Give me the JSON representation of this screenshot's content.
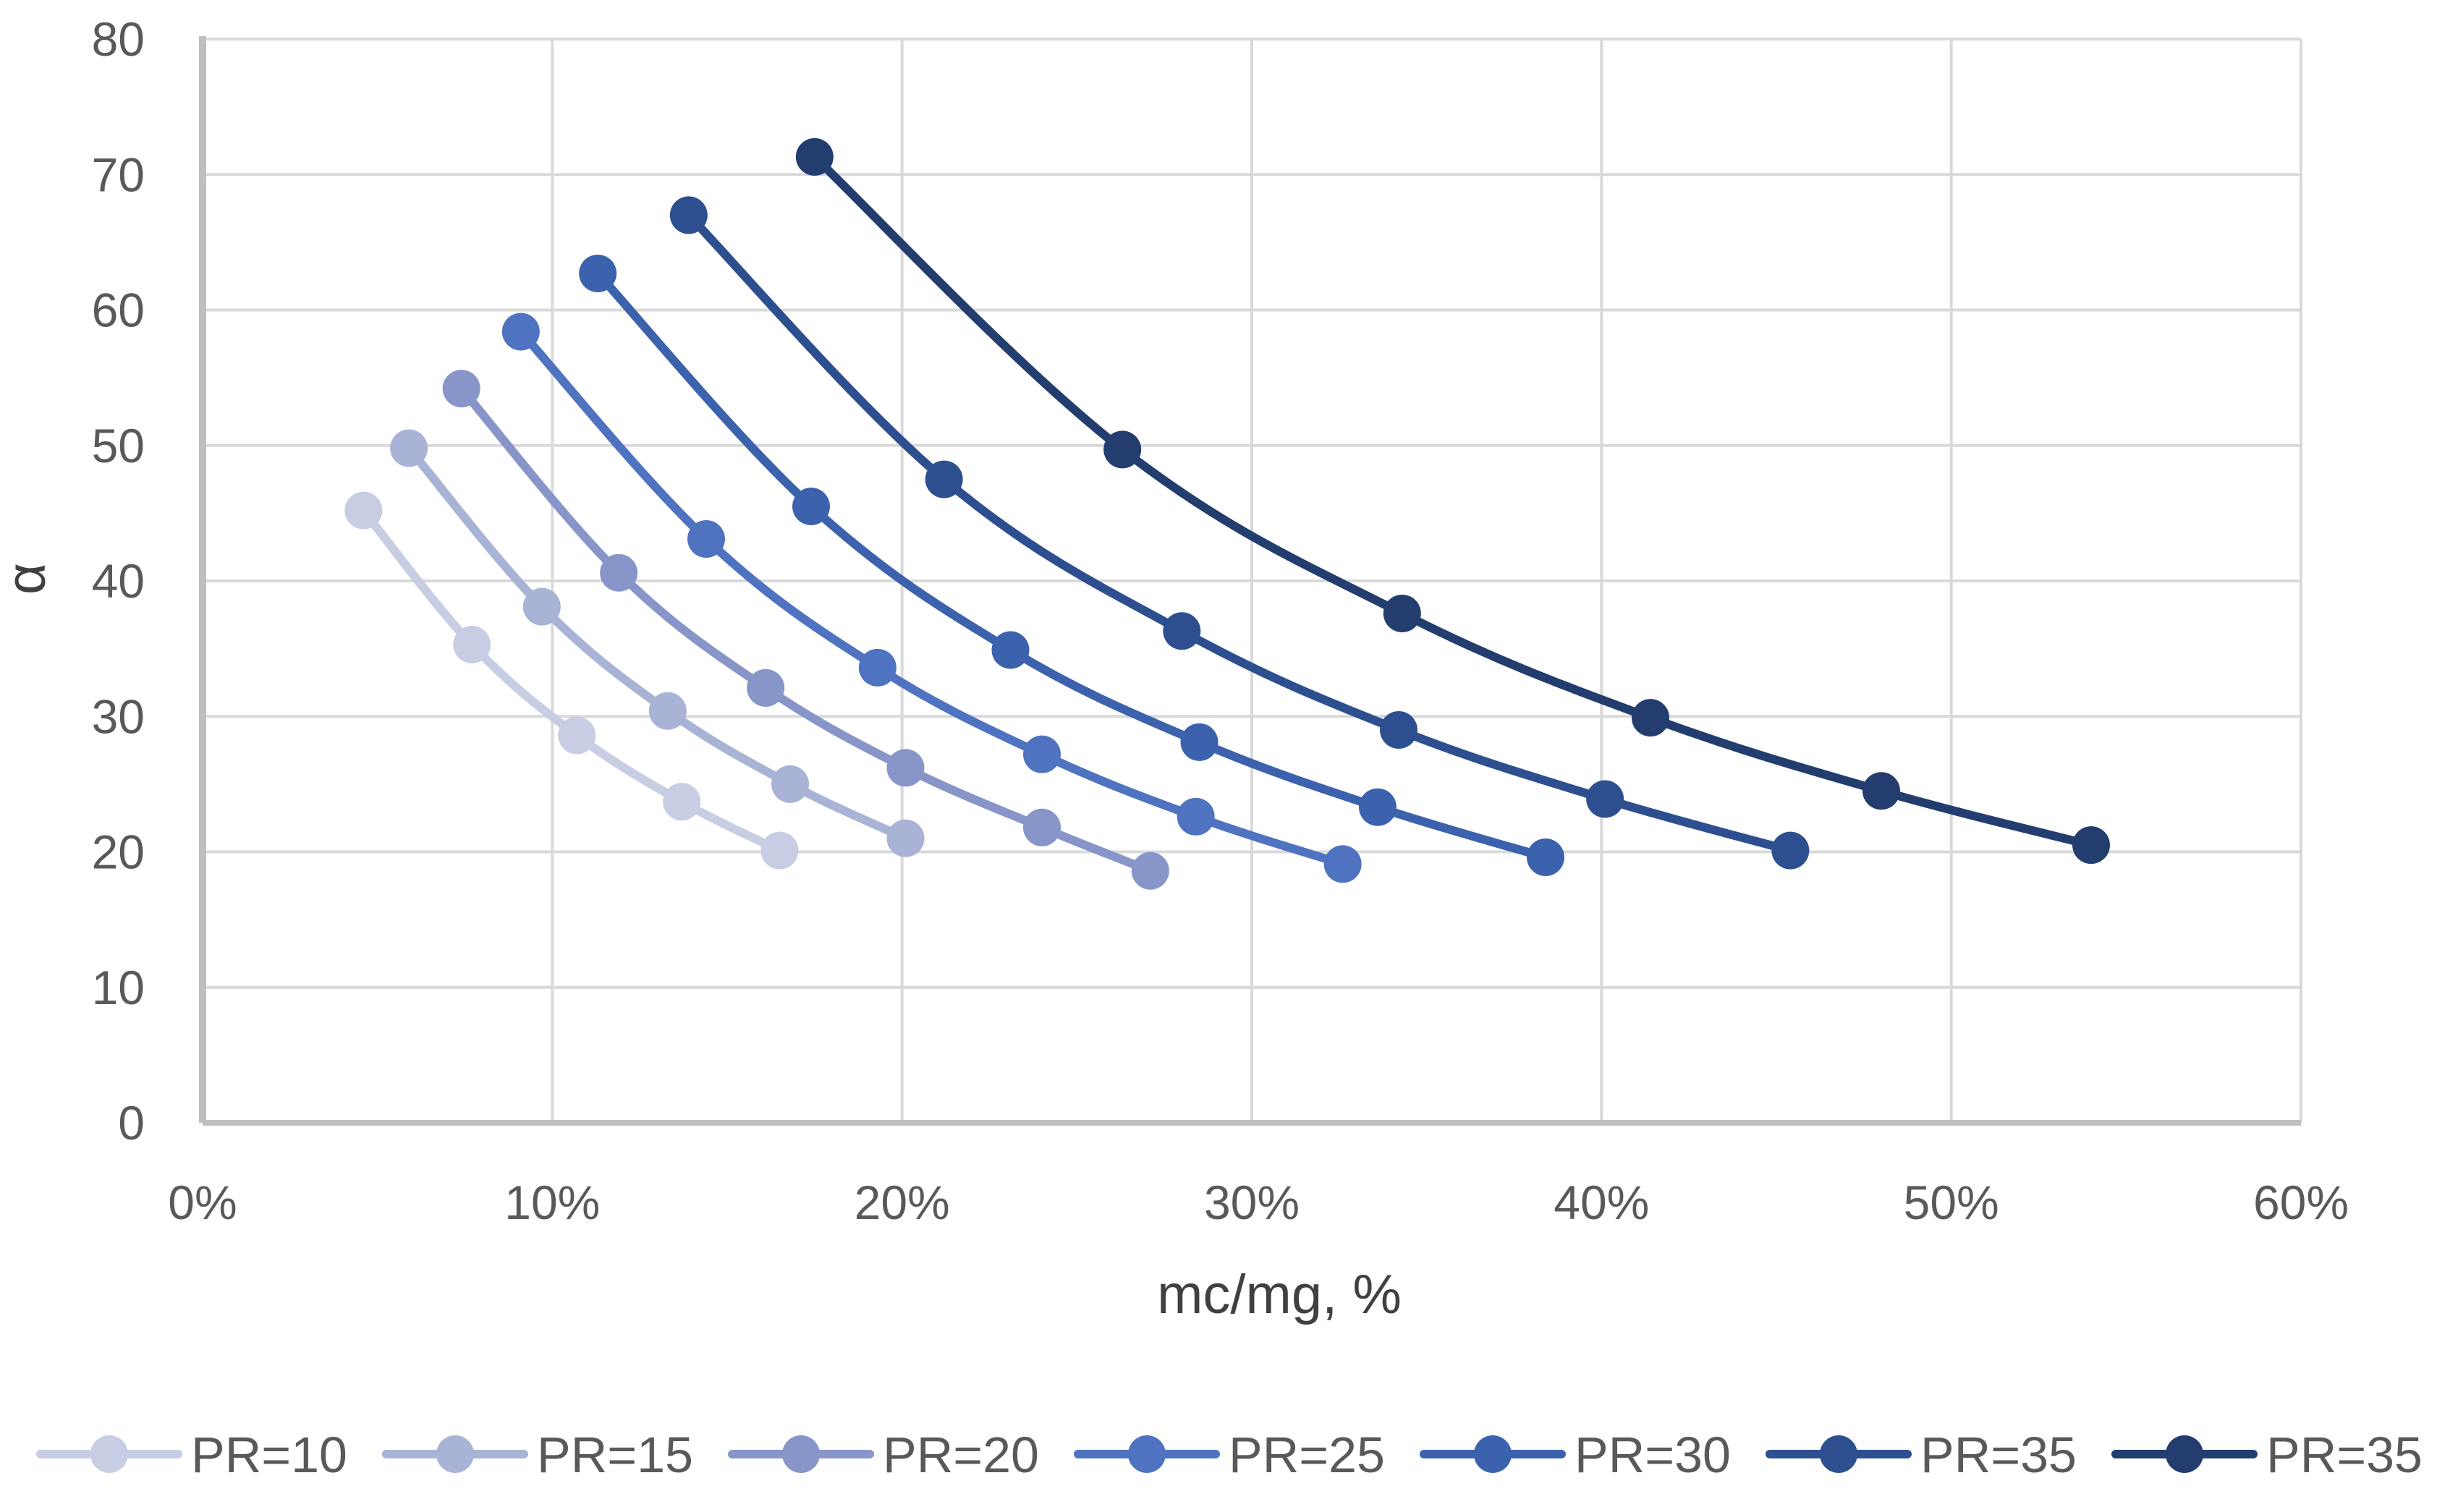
{
  "chart_data": {
    "type": "line",
    "title": "",
    "xlabel": "mc/mg, %",
    "ylabel": "α",
    "xlim": [
      0,
      60
    ],
    "ylim": [
      0,
      80
    ],
    "x_ticks": [
      0,
      10,
      20,
      30,
      40,
      50,
      60
    ],
    "x_tick_labels": [
      "0%",
      "10%",
      "20%",
      "30%",
      "40%",
      "50%",
      "60%"
    ],
    "y_ticks": [
      0,
      10,
      20,
      30,
      40,
      50,
      60,
      70,
      80
    ],
    "y_tick_labels": [
      "0",
      "10",
      "20",
      "30",
      "40",
      "50",
      "60",
      "70",
      "80"
    ],
    "grid": true,
    "legend_position": "bottom",
    "series": [
      {
        "name": "PR=10",
        "color": "#c7cde3",
        "x": [
          4.6,
          7.7,
          10.7,
          13.7,
          16.5
        ],
        "y": [
          45.2,
          35.3,
          28.6,
          23.7,
          20.1
        ]
      },
      {
        "name": "PR=15",
        "color": "#a8b3d6",
        "x": [
          5.9,
          9.7,
          13.3,
          16.8,
          20.1
        ],
        "y": [
          49.8,
          38.1,
          30.4,
          25.0,
          21.0
        ]
      },
      {
        "name": "PR=20",
        "color": "#8795c8",
        "x": [
          7.4,
          11.9,
          16.1,
          20.1,
          24.0,
          27.1
        ],
        "y": [
          54.2,
          40.6,
          32.1,
          26.2,
          21.8,
          18.6
        ]
      },
      {
        "name": "PR=25",
        "color": "#4f73c0",
        "x": [
          9.1,
          14.4,
          19.3,
          24.0,
          28.4,
          32.6
        ],
        "y": [
          58.4,
          43.1,
          33.6,
          27.2,
          22.6,
          19.1
        ]
      },
      {
        "name": "PR=30",
        "color": "#3d62ad",
        "x": [
          11.3,
          17.4,
          23.1,
          28.5,
          33.6,
          38.4
        ],
        "y": [
          62.7,
          45.5,
          34.9,
          28.1,
          23.3,
          19.6
        ]
      },
      {
        "name": "PR=35",
        "color": "#2e4f8f",
        "x": [
          13.9,
          21.2,
          28.0,
          34.2,
          40.1,
          45.4
        ],
        "y": [
          67.0,
          47.5,
          36.3,
          29.0,
          23.9,
          20.1
        ]
      },
      {
        "name": "PR=35",
        "color": "#223d6e",
        "x": [
          17.5,
          26.3,
          34.3,
          41.4,
          48.0,
          54.0
        ],
        "y": [
          71.3,
          49.7,
          37.6,
          29.9,
          24.5,
          20.5
        ]
      }
    ]
  },
  "colors": {
    "grid": "#d9d9d9",
    "axis": "#bfbfbf",
    "background": "#ffffff"
  }
}
